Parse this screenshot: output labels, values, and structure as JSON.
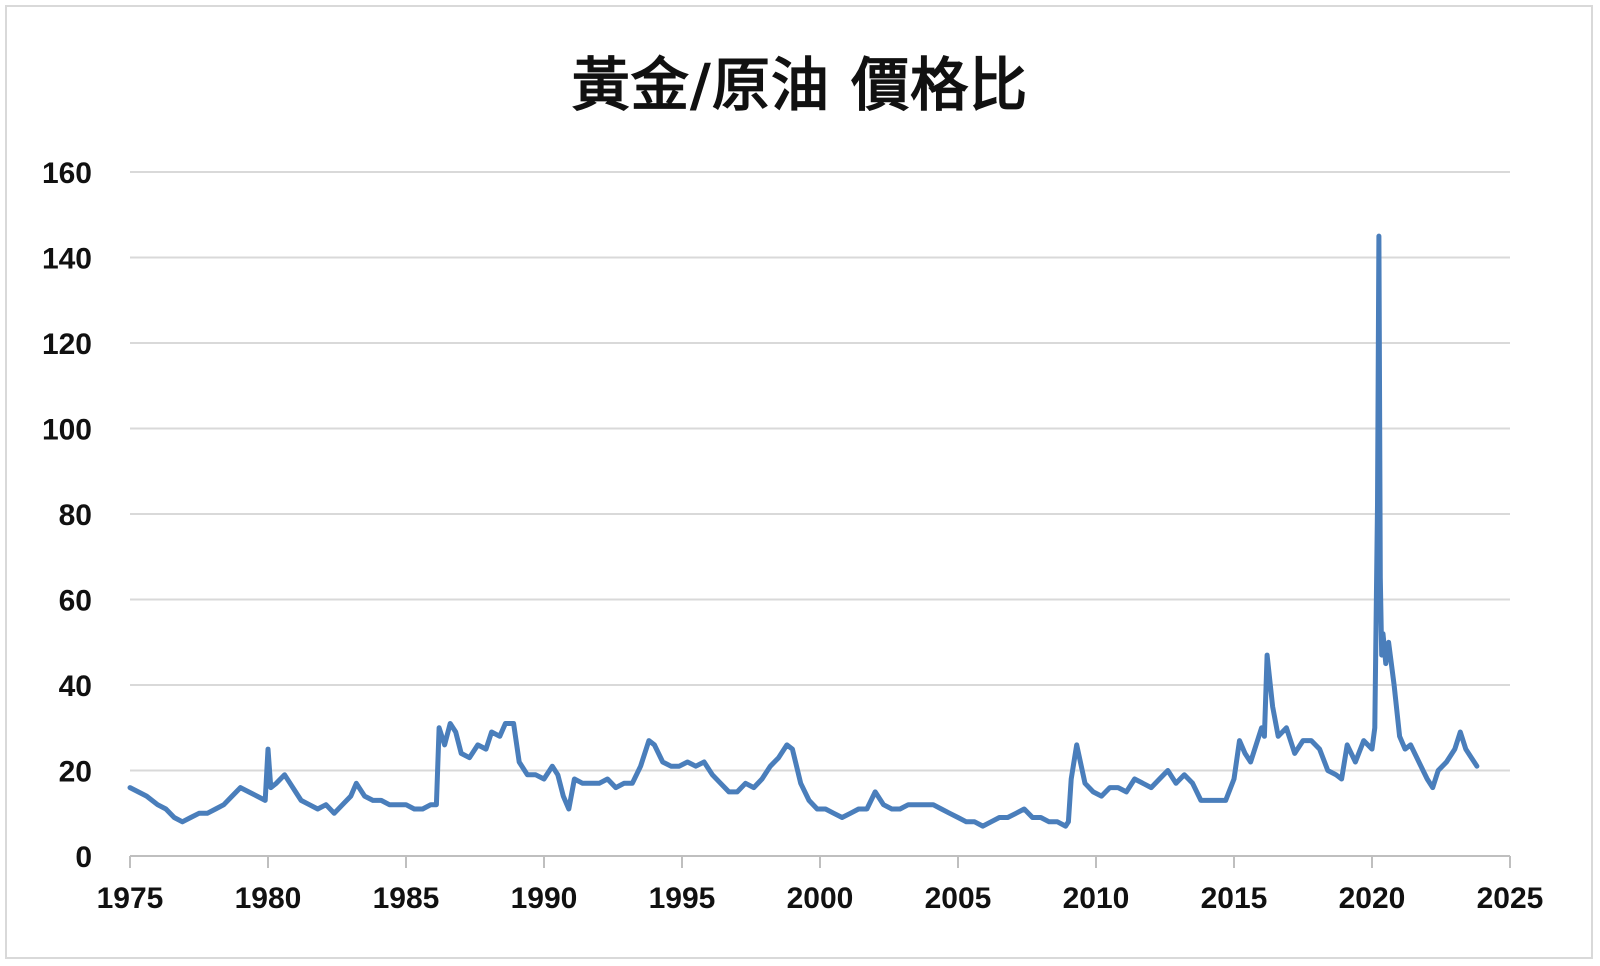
{
  "chart_data": {
    "type": "line",
    "title": "黃金/原油 價格比",
    "xlabel": "",
    "ylabel": "",
    "xlim": [
      1975,
      2025
    ],
    "ylim": [
      0,
      160
    ],
    "x_ticks": [
      "1975",
      "1980",
      "1985",
      "1990",
      "1995",
      "2000",
      "2005",
      "2010",
      "2015",
      "2020",
      "2025"
    ],
    "y_ticks": [
      "0",
      "20",
      "40",
      "60",
      "80",
      "100",
      "120",
      "140",
      "160"
    ],
    "grid": true,
    "legend": "none",
    "colors": {
      "line": "#4a7ebb",
      "grid": "#d9d9d9",
      "axis": "#bfbfbf"
    },
    "series": [
      {
        "x": [
          1975.0,
          1975.3,
          1975.6,
          1976.0,
          1976.3,
          1976.6,
          1976.9,
          1977.2,
          1977.5,
          1977.8,
          1978.1,
          1978.4,
          1978.7,
          1979.0,
          1979.3,
          1979.6,
          1979.9,
          1980.0,
          1980.1,
          1980.3,
          1980.6,
          1980.8,
          1981.0,
          1981.2,
          1981.5,
          1981.8,
          1982.1,
          1982.4,
          1982.7,
          1983.0,
          1983.2,
          1983.5,
          1983.8,
          1984.1,
          1984.4,
          1984.7,
          1985.0,
          1985.3,
          1985.6,
          1985.9,
          1986.1,
          1986.2,
          1986.4,
          1986.6,
          1986.8,
          1987.0,
          1987.3,
          1987.6,
          1987.9,
          1988.1,
          1988.4,
          1988.6,
          1988.9,
          1989.1,
          1989.4,
          1989.7,
          1990.0,
          1990.3,
          1990.5,
          1990.7,
          1990.9,
          1991.1,
          1991.4,
          1991.7,
          1992.0,
          1992.3,
          1992.6,
          1992.9,
          1993.2,
          1993.5,
          1993.8,
          1994.0,
          1994.3,
          1994.6,
          1994.9,
          1995.2,
          1995.5,
          1995.8,
          1996.1,
          1996.4,
          1996.7,
          1997.0,
          1997.3,
          1997.6,
          1997.9,
          1998.2,
          1998.5,
          1998.8,
          1999.0,
          1999.3,
          1999.6,
          1999.9,
          2000.2,
          2000.5,
          2000.8,
          2001.1,
          2001.4,
          2001.7,
          2002.0,
          2002.3,
          2002.6,
          2002.9,
          2003.2,
          2003.5,
          2003.8,
          2004.1,
          2004.4,
          2004.7,
          2005.0,
          2005.3,
          2005.6,
          2005.9,
          2006.2,
          2006.5,
          2006.8,
          2007.1,
          2007.4,
          2007.7,
          2008.0,
          2008.3,
          2008.6,
          2008.9,
          2009.0,
          2009.1,
          2009.3,
          2009.6,
          2009.9,
          2010.2,
          2010.5,
          2010.8,
          2011.1,
          2011.4,
          2011.7,
          2012.0,
          2012.3,
          2012.6,
          2012.9,
          2013.2,
          2013.5,
          2013.8,
          2014.1,
          2014.4,
          2014.7,
          2015.0,
          2015.2,
          2015.4,
          2015.6,
          2015.8,
          2016.0,
          2016.1,
          2016.2,
          2016.4,
          2016.6,
          2016.9,
          2017.2,
          2017.5,
          2017.8,
          2018.1,
          2018.4,
          2018.7,
          2018.9,
          2019.1,
          2019.4,
          2019.7,
          2020.0,
          2020.1,
          2020.2,
          2020.25,
          2020.3,
          2020.35,
          2020.4,
          2020.5,
          2020.6,
          2020.8,
          2021.0,
          2021.2,
          2021.4,
          2021.7,
          2022.0,
          2022.2,
          2022.4,
          2022.7,
          2023.0,
          2023.2,
          2023.4,
          2023.6,
          2023.8
        ],
        "values": [
          16,
          15,
          14,
          12,
          11,
          9,
          8,
          9,
          10,
          10,
          11,
          12,
          14,
          16,
          15,
          14,
          13,
          25,
          16,
          17,
          19,
          17,
          15,
          13,
          12,
          11,
          12,
          10,
          12,
          14,
          17,
          14,
          13,
          13,
          12,
          12,
          12,
          11,
          11,
          12,
          12,
          30,
          26,
          31,
          29,
          24,
          23,
          26,
          25,
          29,
          28,
          31,
          31,
          22,
          19,
          19,
          18,
          21,
          19,
          14,
          11,
          18,
          17,
          17,
          17,
          18,
          16,
          17,
          17,
          21,
          27,
          26,
          22,
          21,
          21,
          22,
          21,
          22,
          19,
          17,
          15,
          15,
          17,
          16,
          18,
          21,
          23,
          26,
          25,
          17,
          13,
          11,
          11,
          10,
          9,
          10,
          11,
          11,
          15,
          12,
          11,
          11,
          12,
          12,
          12,
          12,
          11,
          10,
          9,
          8,
          8,
          7,
          8,
          9,
          9,
          10,
          11,
          9,
          9,
          8,
          8,
          7,
          8,
          18,
          26,
          17,
          15,
          14,
          16,
          16,
          15,
          18,
          17,
          16,
          18,
          20,
          17,
          19,
          17,
          13,
          13,
          13,
          13,
          18,
          27,
          24,
          22,
          26,
          30,
          28,
          47,
          35,
          28,
          30,
          24,
          27,
          27,
          25,
          20,
          19,
          18,
          26,
          22,
          27,
          25,
          30,
          82,
          145,
          65,
          47,
          52,
          45,
          50,
          40,
          28,
          25,
          26,
          22,
          18,
          16,
          20,
          22,
          25,
          29,
          25,
          23,
          21
        ]
      }
    ]
  }
}
